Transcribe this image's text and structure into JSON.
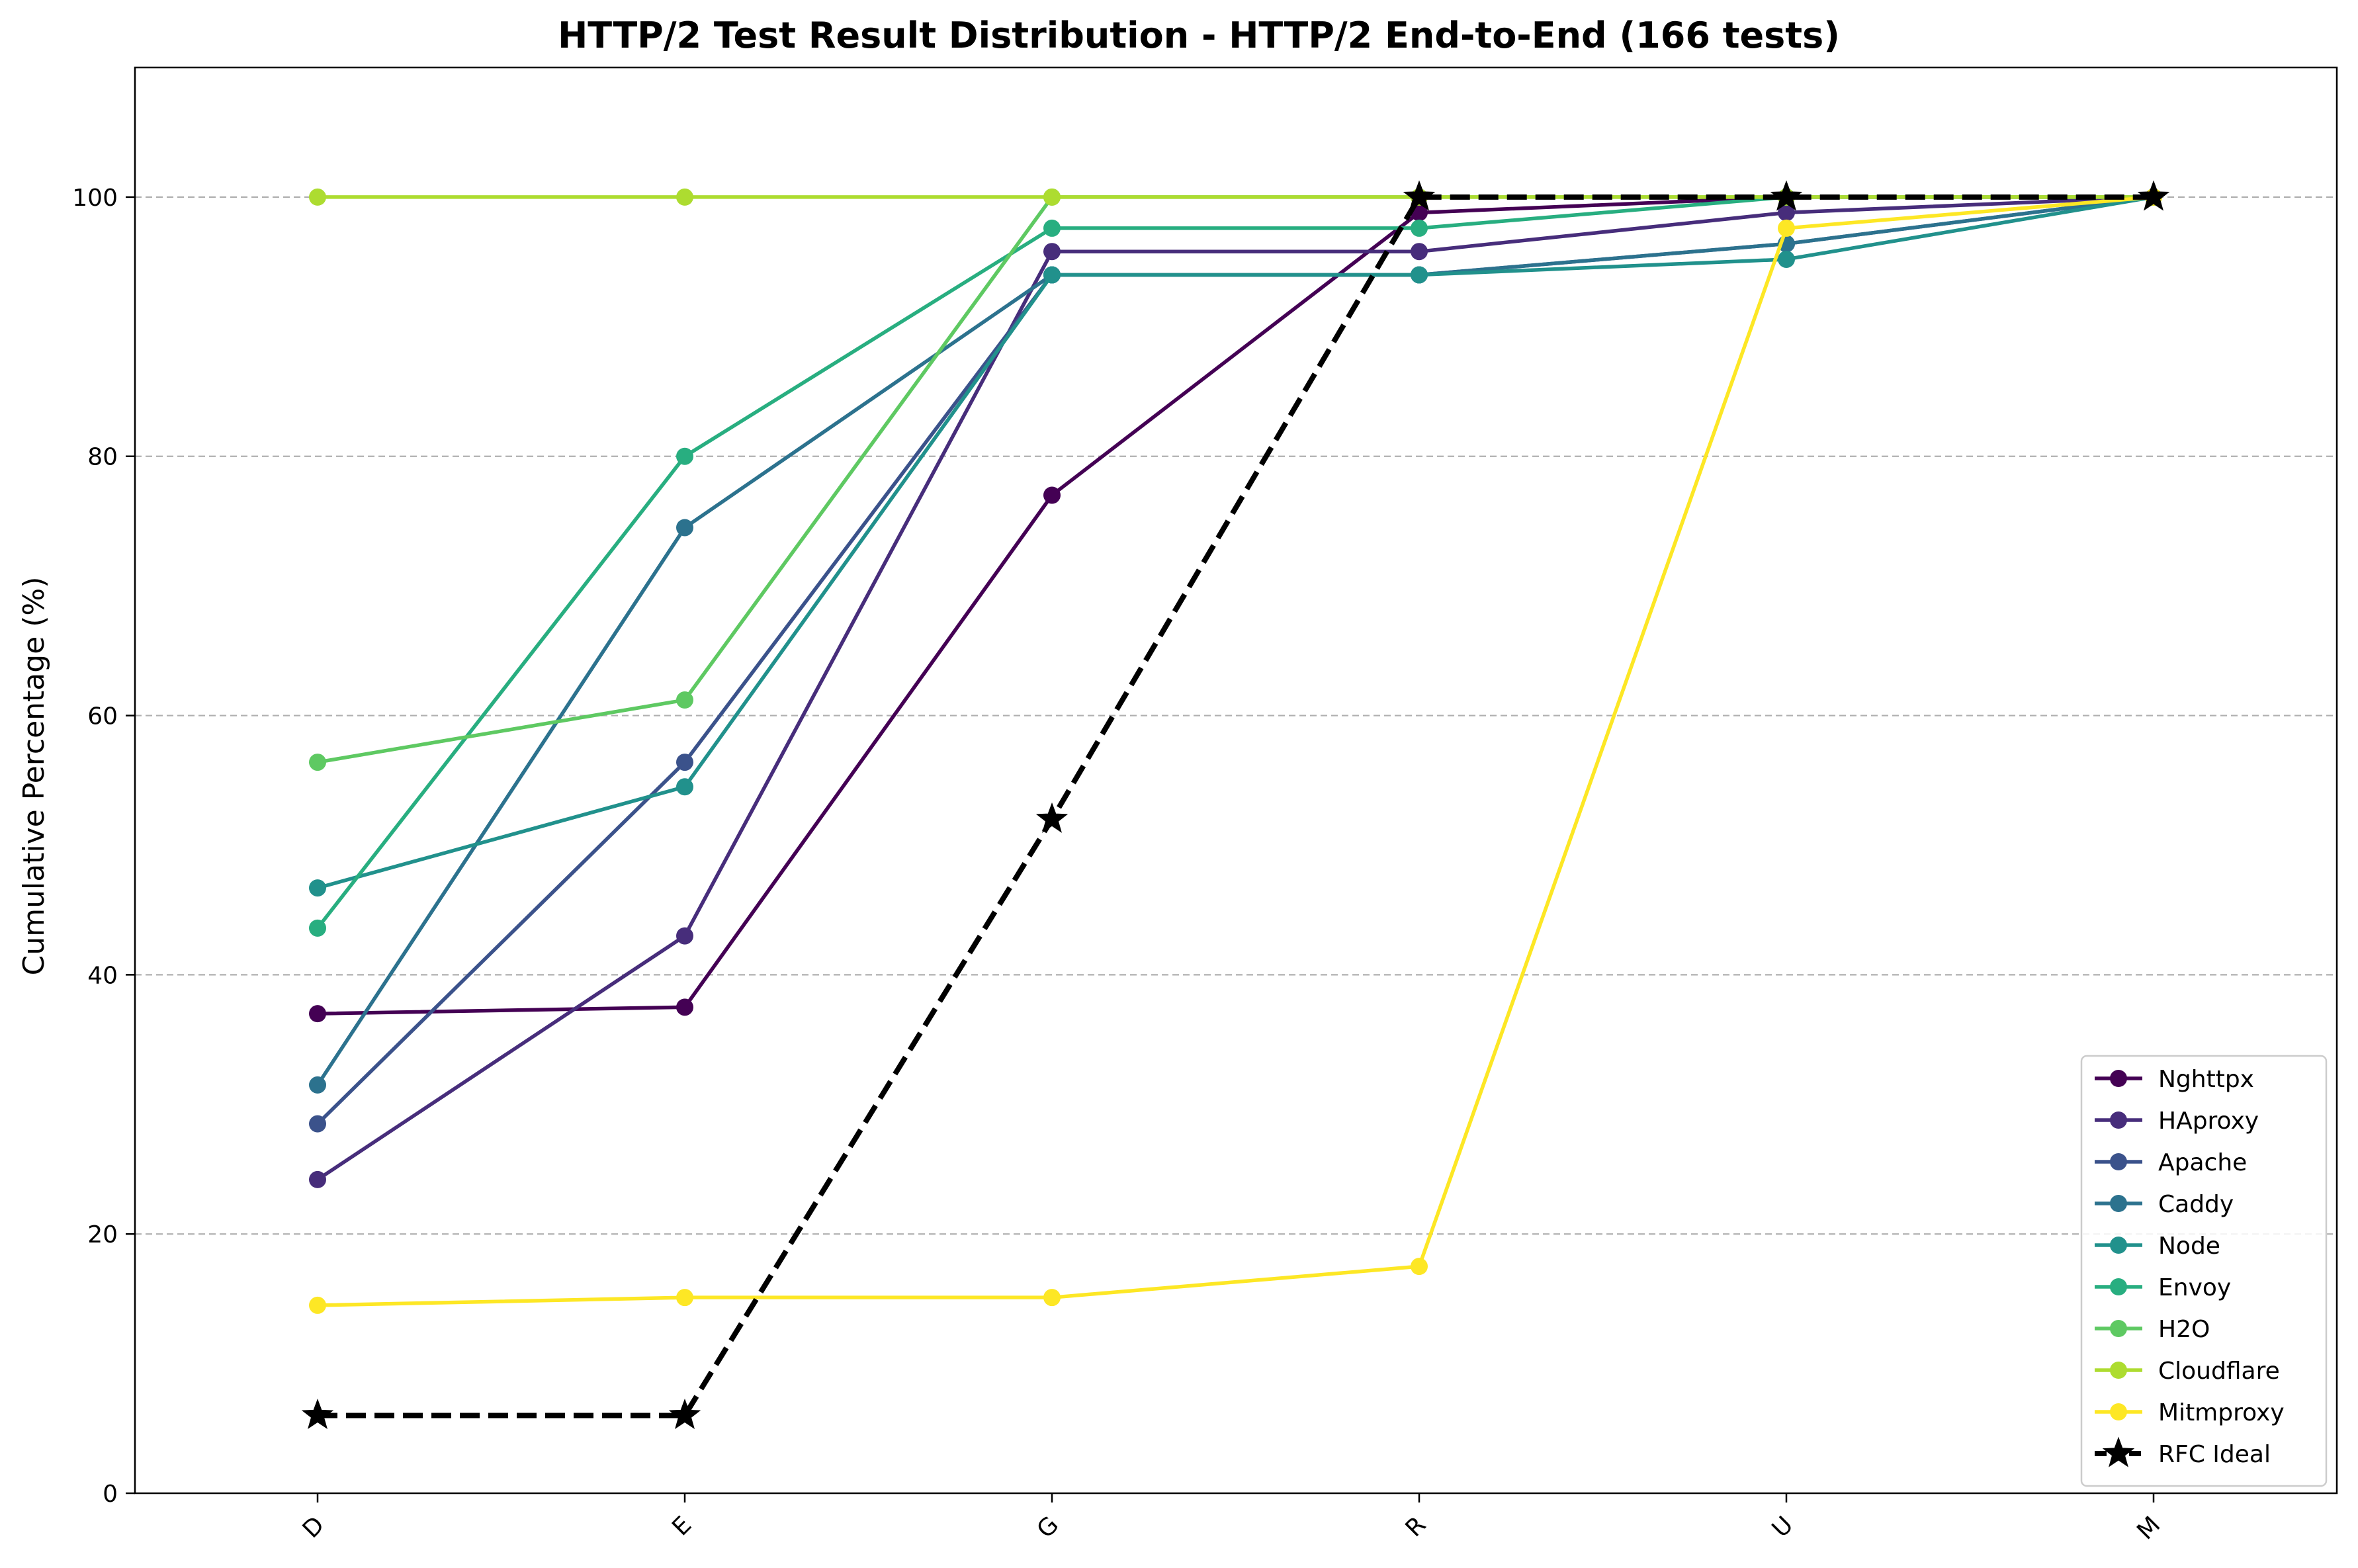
{
  "chart_data": {
    "type": "line",
    "title": "HTTP/2 Test Result Distribution - HTTP/2 End-to-End (166 tests)",
    "xlabel": "",
    "ylabel": "Cumulative Percentage (%)",
    "categories": [
      "D",
      "E",
      "G",
      "R",
      "U",
      "M"
    ],
    "ylim": [
      0,
      110
    ],
    "yticks": [
      0,
      20,
      40,
      60,
      80,
      100
    ],
    "grid": "y-dashed",
    "legend_position": "lower right",
    "series": [
      {
        "name": "Nghttpx",
        "color": "#440154",
        "marker": "circle",
        "dashed": false,
        "values": [
          37.0,
          37.5,
          77.0,
          98.8,
          100,
          100
        ]
      },
      {
        "name": "HAproxy",
        "color": "#472d7b",
        "marker": "circle",
        "dashed": false,
        "values": [
          24.2,
          43.0,
          95.8,
          95.8,
          98.8,
          100
        ]
      },
      {
        "name": "Apache",
        "color": "#3b528b",
        "marker": "circle",
        "dashed": false,
        "values": [
          28.5,
          56.4,
          94.0,
          94.0,
          96.4,
          100
        ]
      },
      {
        "name": "Caddy",
        "color": "#2c728e",
        "marker": "circle",
        "dashed": false,
        "values": [
          31.5,
          74.5,
          94.0,
          94.0,
          96.4,
          100
        ]
      },
      {
        "name": "Node",
        "color": "#21918c",
        "marker": "circle",
        "dashed": false,
        "values": [
          46.7,
          54.5,
          94.0,
          94.0,
          95.2,
          100
        ]
      },
      {
        "name": "Envoy",
        "color": "#28ae80",
        "marker": "circle",
        "dashed": false,
        "values": [
          43.6,
          80.0,
          97.6,
          97.6,
          100,
          100
        ]
      },
      {
        "name": "H2O",
        "color": "#5ec962",
        "marker": "circle",
        "dashed": false,
        "values": [
          56.4,
          61.2,
          100,
          100,
          100,
          100
        ]
      },
      {
        "name": "Cloudflare",
        "color": "#addc30",
        "marker": "circle",
        "dashed": false,
        "values": [
          100,
          100,
          100,
          100,
          100,
          100
        ]
      },
      {
        "name": "Mitmproxy",
        "color": "#fde725",
        "marker": "circle",
        "dashed": false,
        "values": [
          14.5,
          15.1,
          15.1,
          17.5,
          97.6,
          100
        ]
      },
      {
        "name": "RFC Ideal",
        "color": "#000000",
        "marker": "star",
        "dashed": true,
        "values": [
          6.0,
          6.0,
          52.0,
          100,
          100,
          100
        ]
      }
    ]
  }
}
